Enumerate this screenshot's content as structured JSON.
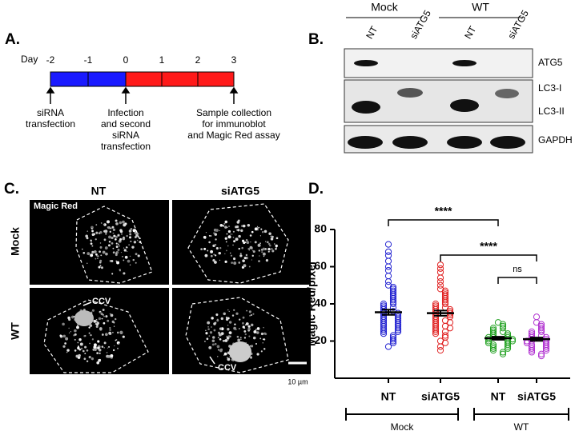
{
  "panel_a": {
    "label": "A.",
    "axis_label": "Day",
    "days": [
      -2,
      -1,
      0,
      1,
      2,
      3
    ],
    "events": [
      {
        "lines": [
          "siRNA",
          "transfection"
        ]
      },
      {
        "lines": [
          "Infection",
          "and second",
          "siRNA",
          "transfection"
        ]
      },
      {
        "lines": [
          "Sample collection",
          "for immunoblot",
          "and Magic Red assay"
        ]
      }
    ]
  },
  "panel_b": {
    "label": "B.",
    "groups": [
      "Mock",
      "WT"
    ],
    "lanes": [
      "NT",
      "siATG5",
      "NT",
      "siATG5"
    ],
    "rows": [
      "ATG5",
      "LC3-I",
      "LC3-II",
      "GAPDH"
    ]
  },
  "panel_c": {
    "label": "C.",
    "columns": [
      "NT",
      "siATG5"
    ],
    "rows": [
      "Mock",
      "WT"
    ],
    "stain": "Magic Red",
    "annotations": [
      "CCV",
      "CCV"
    ],
    "scale_bar": "10 µm"
  },
  "chart_data": {
    "type": "strip",
    "panel_label": "D.",
    "y_label": "Magic Red/pixel",
    "categories": [
      "NT",
      "siATG5",
      "NT",
      "siATG5"
    ],
    "group_labels": [
      "Mock",
      "WT"
    ],
    "ylim": [
      0,
      80
    ],
    "yticks": [
      20,
      40,
      60,
      80
    ],
    "significance": [
      "****",
      "****",
      "ns"
    ],
    "series": [
      {
        "color": "#2020d0",
        "mean": 35.5,
        "sem": 1.4,
        "values": [
          72,
          68,
          66,
          63,
          60,
          58,
          55,
          52,
          50,
          49,
          48,
          47,
          46,
          45,
          44,
          43,
          42,
          41,
          40,
          40,
          39,
          38,
          38,
          37,
          36,
          36,
          35,
          35,
          34,
          34,
          33,
          33,
          32,
          32,
          31,
          31,
          30,
          30,
          29,
          29,
          28,
          28,
          27,
          27,
          26,
          26,
          25,
          25,
          24,
          23,
          22,
          21,
          20,
          19,
          17
        ]
      },
      {
        "color": "#e02020",
        "mean": 35,
        "sem": 1.4,
        "values": [
          61,
          59,
          57,
          54,
          52,
          50,
          48,
          47,
          46,
          45,
          44,
          43,
          42,
          41,
          40,
          40,
          39,
          38,
          38,
          37,
          37,
          36,
          36,
          35,
          35,
          34,
          34,
          33,
          33,
          32,
          31,
          31,
          30,
          30,
          29,
          28,
          28,
          27,
          27,
          26,
          25,
          25,
          24,
          23,
          22,
          20,
          19,
          17,
          15
        ]
      },
      {
        "color": "#20a020",
        "mean": 21.5,
        "sem": 0.8,
        "values": [
          30,
          29,
          28,
          27,
          27,
          26,
          25,
          25,
          24,
          24,
          23,
          23,
          22,
          22,
          22,
          21,
          21,
          21,
          20,
          20,
          20,
          19,
          19,
          18,
          18,
          17,
          17,
          16,
          16,
          15,
          14,
          13
        ]
      },
      {
        "color": "#b030d0",
        "mean": 21,
        "sem": 0.9,
        "values": [
          33,
          30,
          29,
          28,
          27,
          26,
          25,
          25,
          24,
          23,
          23,
          22,
          22,
          21,
          21,
          20,
          20,
          20,
          19,
          19,
          18,
          18,
          17,
          17,
          16,
          16,
          15,
          15,
          14,
          13,
          12
        ]
      }
    ]
  }
}
